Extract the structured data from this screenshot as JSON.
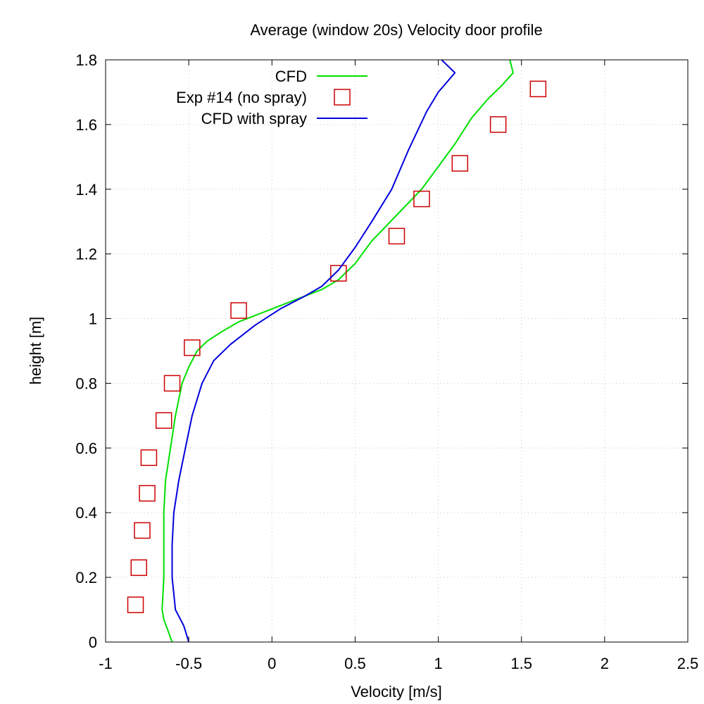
{
  "chart_data": {
    "type": "line",
    "title": "Average (window 20s) Velocity door profile",
    "xlabel": "Velocity [m/s]",
    "ylabel": "height [m]",
    "xlim": [
      -1,
      2.5
    ],
    "ylim": [
      0,
      1.8
    ],
    "xticks": [
      "-1",
      "-0.5",
      "0",
      "0.5",
      "1",
      "1.5",
      "2",
      "2.5"
    ],
    "yticks": [
      "0",
      "0.2",
      "0.4",
      "0.6",
      "0.8",
      "1",
      "1.2",
      "1.4",
      "1.6",
      "1.8"
    ],
    "grid": true,
    "legend_position": "top-right",
    "series": [
      {
        "name": "CFD",
        "style": "line",
        "color": "#00e000",
        "points": [
          [
            -0.6,
            0.0
          ],
          [
            -0.65,
            0.07
          ],
          [
            -0.66,
            0.1
          ],
          [
            -0.65,
            0.2
          ],
          [
            -0.65,
            0.3
          ],
          [
            -0.65,
            0.4
          ],
          [
            -0.64,
            0.5
          ],
          [
            -0.61,
            0.6
          ],
          [
            -0.58,
            0.7
          ],
          [
            -0.54,
            0.8
          ],
          [
            -0.5,
            0.85
          ],
          [
            -0.45,
            0.9
          ],
          [
            -0.39,
            0.93
          ],
          [
            -0.3,
            0.96
          ],
          [
            -0.2,
            0.99
          ],
          [
            -0.05,
            1.02
          ],
          [
            0.1,
            1.05
          ],
          [
            0.2,
            1.07
          ],
          [
            0.3,
            1.09
          ],
          [
            0.4,
            1.12
          ],
          [
            0.5,
            1.17
          ],
          [
            0.6,
            1.24
          ],
          [
            0.75,
            1.32
          ],
          [
            0.9,
            1.4
          ],
          [
            1.0,
            1.47
          ],
          [
            1.1,
            1.54
          ],
          [
            1.2,
            1.62
          ],
          [
            1.3,
            1.68
          ],
          [
            1.38,
            1.72
          ],
          [
            1.45,
            1.76
          ],
          [
            1.43,
            1.8
          ]
        ]
      },
      {
        "name": "Exp #14 (no spray)",
        "style": "markers",
        "marker": "open-square",
        "color": "#cc0000",
        "points": [
          [
            -0.82,
            0.115
          ],
          [
            -0.8,
            0.23
          ],
          [
            -0.78,
            0.345
          ],
          [
            -0.75,
            0.46
          ],
          [
            -0.74,
            0.57
          ],
          [
            -0.65,
            0.685
          ],
          [
            -0.6,
            0.8
          ],
          [
            -0.48,
            0.91
          ],
          [
            -0.2,
            1.025
          ],
          [
            0.4,
            1.14
          ],
          [
            0.75,
            1.255
          ],
          [
            0.9,
            1.37
          ],
          [
            1.13,
            1.48
          ],
          [
            1.36,
            1.6
          ],
          [
            1.6,
            1.71
          ]
        ]
      },
      {
        "name": "CFD with spray",
        "style": "line",
        "color": "#0000dd",
        "points": [
          [
            -0.5,
            0.0
          ],
          [
            -0.53,
            0.05
          ],
          [
            -0.58,
            0.1
          ],
          [
            -0.6,
            0.2
          ],
          [
            -0.6,
            0.3
          ],
          [
            -0.59,
            0.4
          ],
          [
            -0.56,
            0.5
          ],
          [
            -0.52,
            0.6
          ],
          [
            -0.48,
            0.7
          ],
          [
            -0.42,
            0.8
          ],
          [
            -0.35,
            0.87
          ],
          [
            -0.25,
            0.92
          ],
          [
            -0.1,
            0.98
          ],
          [
            0.05,
            1.03
          ],
          [
            0.2,
            1.07
          ],
          [
            0.3,
            1.1
          ],
          [
            0.4,
            1.15
          ],
          [
            0.5,
            1.22
          ],
          [
            0.6,
            1.3
          ],
          [
            0.72,
            1.4
          ],
          [
            0.82,
            1.52
          ],
          [
            0.93,
            1.64
          ],
          [
            1.0,
            1.7
          ],
          [
            1.1,
            1.76
          ],
          [
            1.02,
            1.8
          ]
        ]
      }
    ]
  }
}
